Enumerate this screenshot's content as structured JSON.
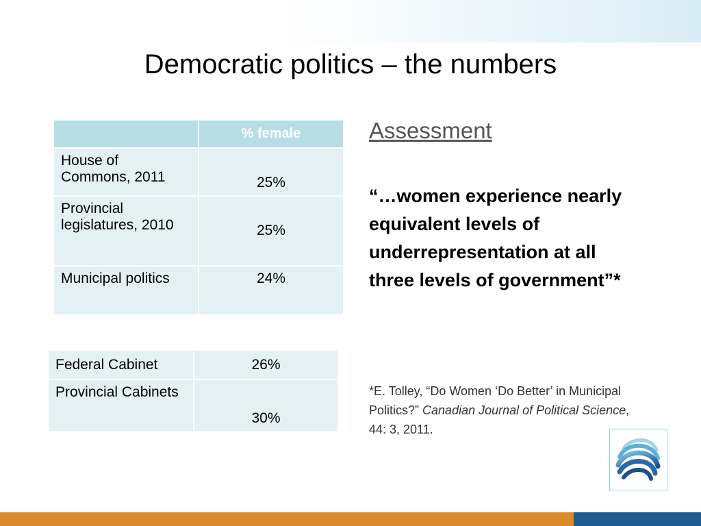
{
  "slide": {
    "title": "Democratic politics – the numbers"
  },
  "table1": {
    "header": [
      "",
      "% female"
    ],
    "rows": [
      {
        "label": "House of Commons, 2011",
        "value": "25%"
      },
      {
        "label": "Provincial legislatures, 2010",
        "value": "25%"
      },
      {
        "label": "Municipal politics",
        "value": "24%"
      }
    ]
  },
  "table2": {
    "rows": [
      {
        "label": "Federal Cabinet",
        "value": "26%"
      },
      {
        "label": "Provincial Cabinets",
        "value": "30%"
      }
    ]
  },
  "assessment": {
    "heading": "Assessment",
    "quote": "“…women experience nearly equivalent levels of underrepresentation at all three levels of government”*",
    "citation_prefix": "*E. Tolley, “Do Women ‘Do Better’ in Municipal Politics?” ",
    "citation_journal": "Canadian Journal of Political Science",
    "citation_suffix": ", 44: 3, 2011."
  },
  "logo": {
    "icon": "globe-swirl-icon"
  },
  "colors": {
    "header_fill": "#b7dde5",
    "cell_fill": "#e3f0f4",
    "footer_orange": "#d98a2b",
    "footer_blue": "#1f5b92"
  }
}
